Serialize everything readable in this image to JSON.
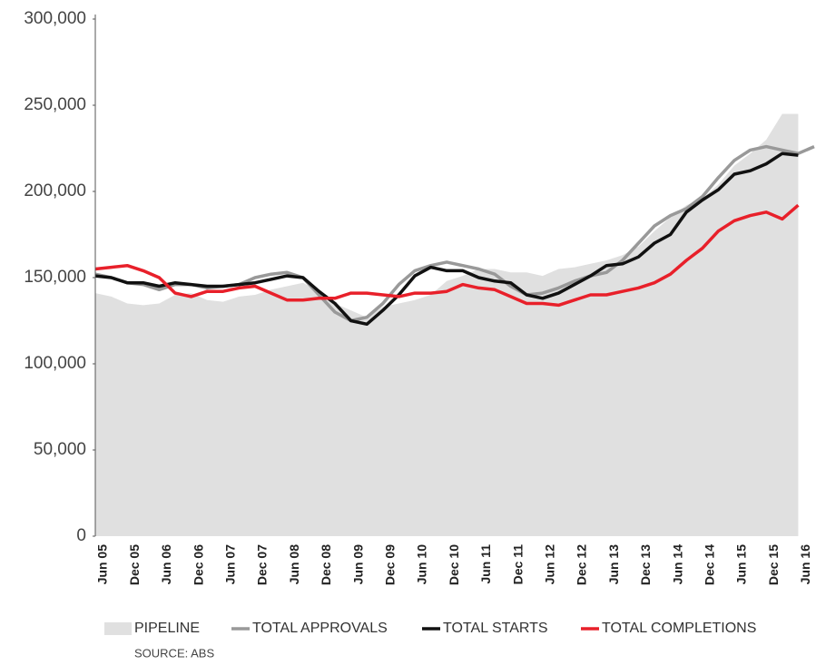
{
  "chart_data": {
    "type": "line",
    "source": "SOURCE: ABS",
    "categories": [
      "Jun 05",
      null,
      "Dec 05",
      null,
      "Jun 06",
      null,
      "Dec 06",
      null,
      "Jun 07",
      null,
      "Dec 07",
      null,
      "Jun 08",
      null,
      "Dec 08",
      null,
      "Jun 09",
      null,
      "Dec 09",
      null,
      "Jun 10",
      null,
      "Dec 10",
      null,
      "Jun 11",
      null,
      "Dec 11",
      null,
      "Jun 12",
      null,
      "Dec 12",
      null,
      "Jun 13",
      null,
      "Dec 13",
      null,
      "Jun 14",
      null,
      "Dec 14",
      null,
      "Jun 15",
      null,
      "Dec 15",
      null,
      "Jun 16",
      null
    ],
    "ylim": [
      0,
      300000
    ],
    "yticks": [
      0,
      {
        "value": 50000,
        "label": "50,000"
      },
      {
        "value": 100000,
        "label": "100,000"
      },
      {
        "value": 150000,
        "label": "150,000"
      },
      {
        "value": 200000,
        "label": "200,000"
      },
      {
        "value": 250000,
        "label": "250,000"
      },
      {
        "value": 300000,
        "label": "300,000"
      }
    ],
    "grid": false,
    "legend": "bottom",
    "series": [
      {
        "name": "PIPELINE",
        "kind": "area",
        "color": "#e0e0e0",
        "values": [
          141000,
          139000,
          135000,
          134000,
          135000,
          140000,
          141000,
          137000,
          136000,
          139000,
          140000,
          143000,
          145000,
          147000,
          142000,
          135000,
          131000,
          127000,
          133000,
          135000,
          137000,
          140000,
          148000,
          151000,
          155000,
          155000,
          153000,
          153000,
          151000,
          155000,
          156000,
          158000,
          160000,
          163000,
          168000,
          177000,
          185000,
          192000,
          196000,
          204000,
          215000,
          222000,
          230000,
          245000,
          245000,
          null
        ]
      },
      {
        "name": "TOTAL APPROVALS",
        "kind": "line",
        "color": "#999999",
        "values": [
          152000,
          150000,
          147000,
          146000,
          143000,
          146000,
          146000,
          144000,
          145000,
          146000,
          150000,
          152000,
          153000,
          150000,
          140000,
          130000,
          125000,
          127000,
          135000,
          146000,
          154000,
          157000,
          159000,
          157000,
          155000,
          152000,
          145000,
          140000,
          141000,
          144000,
          148000,
          151000,
          153000,
          160000,
          170000,
          180000,
          186000,
          190000,
          197000,
          208000,
          218000,
          224000,
          226000,
          224000,
          222000,
          226000
        ]
      },
      {
        "name": "TOTAL STARTS",
        "kind": "line",
        "color": "#111111",
        "values": [
          151000,
          150000,
          147000,
          147000,
          145000,
          147000,
          146000,
          145000,
          145000,
          146000,
          147000,
          149000,
          151000,
          150000,
          142000,
          135000,
          125000,
          123000,
          131000,
          140000,
          151000,
          156000,
          154000,
          154000,
          150000,
          148000,
          147000,
          140000,
          138000,
          141000,
          146000,
          151000,
          157000,
          158000,
          162000,
          170000,
          175000,
          188000,
          195000,
          201000,
          210000,
          212000,
          216000,
          222000,
          221000,
          null
        ]
      },
      {
        "name": "TOTAL COMPLETIONS",
        "kind": "line",
        "color": "#e8202a",
        "values": [
          155000,
          156000,
          157000,
          154000,
          150000,
          141000,
          139000,
          142000,
          142000,
          144000,
          145000,
          141000,
          137000,
          137000,
          138000,
          138000,
          141000,
          141000,
          140000,
          139000,
          141000,
          141000,
          142000,
          146000,
          144000,
          143000,
          139000,
          135000,
          135000,
          134000,
          137000,
          140000,
          140000,
          142000,
          144000,
          147000,
          152000,
          160000,
          167000,
          177000,
          183000,
          186000,
          188000,
          184000,
          192000,
          null
        ]
      }
    ]
  }
}
